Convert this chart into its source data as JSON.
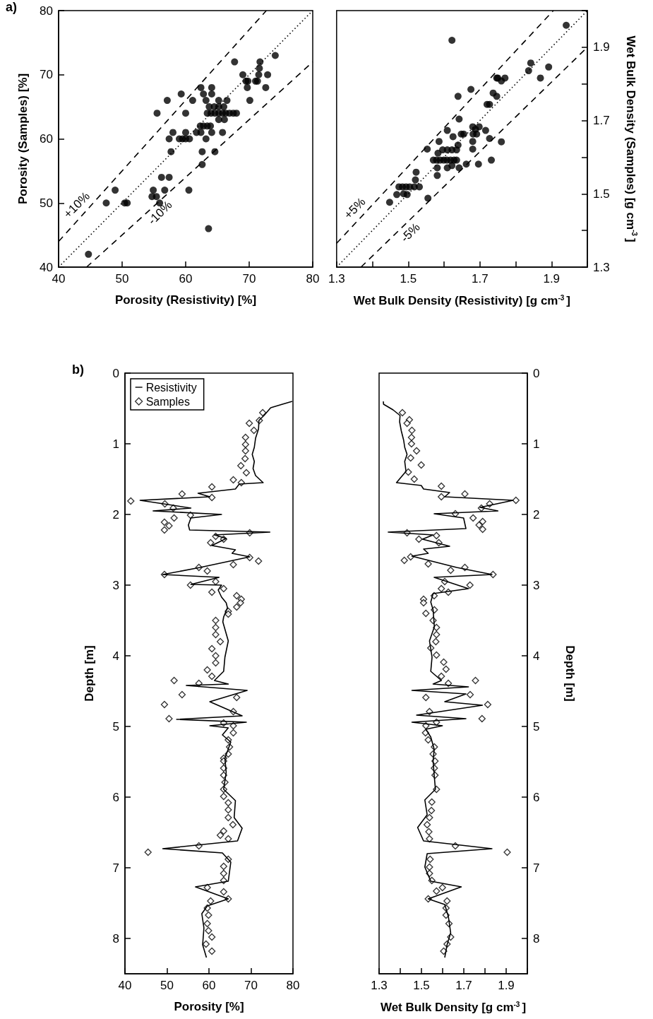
{
  "chart_data": [
    {
      "type": "scatter",
      "xlabel": "Porosity (Resistivity) [%]",
      "ylabel": "Porosity (Samples) [%]",
      "annotations": [
        "a)"
      ],
      "xlim": [
        40,
        80
      ],
      "xticks": [
        40,
        50,
        60,
        70,
        80
      ],
      "ylim": [
        40,
        80
      ],
      "yticks": [
        40,
        50,
        60,
        70,
        80
      ],
      "series": [
        {
          "color": "#000000",
          "marker": "circle",
          "x": [
            44.7,
            47.5,
            48.9,
            50.4,
            50.8,
            54.7,
            54.9,
            55.4,
            55.9,
            56.2,
            56.7,
            57.4,
            57.7,
            57.4,
            58,
            55.5,
            57.1,
            59.3,
            60,
            59,
            59.5,
            60,
            60.6,
            60,
            60.5,
            61.1,
            61.7,
            62.4,
            62.8,
            62.3,
            62.8,
            63.4,
            63.9,
            62.4,
            62.6,
            62.6,
            63.2,
            63.2,
            63.6,
            64.1,
            64.1,
            64.1,
            63.4,
            64,
            64.6,
            65.2,
            65.8,
            66.3,
            66.9,
            67.5,
            68,
            63.7,
            64.5,
            65.2,
            66,
            65.2,
            66.5,
            65.2,
            66.1,
            65.8,
            64.6,
            67.7,
            69,
            69.5,
            69.8,
            69.7,
            70.1,
            71,
            71.3,
            71.5,
            72.9,
            71.6,
            71.7,
            72.6,
            74.1
          ],
          "values": [
            42,
            50,
            52,
            50,
            50,
            51,
            52,
            51,
            50,
            54,
            52,
            54,
            58,
            60,
            61,
            64,
            66,
            67,
            64,
            60,
            60,
            60,
            60,
            61,
            52,
            66,
            61,
            68,
            67,
            62,
            62,
            62,
            62,
            61,
            58,
            56,
            66,
            60,
            46,
            68,
            67,
            61,
            64,
            64,
            64,
            64,
            64,
            64,
            64,
            64,
            64,
            65,
            65,
            65,
            65,
            66,
            66,
            63,
            63,
            61,
            58,
            72,
            70,
            69,
            69,
            68,
            66,
            69,
            69,
            70,
            70,
            71,
            72,
            68,
            73
          ]
        },
        {
          "type": "line",
          "color": "#000000",
          "line_style": "dotted",
          "marker": "none",
          "x": [
            40,
            80
          ],
          "values": [
            40,
            80
          ]
        },
        {
          "type": "line",
          "name": "+10%",
          "color": "#000000",
          "line_style": "dashed",
          "marker": "none",
          "x": [
            40,
            46,
            72.7
          ],
          "values": [
            44,
            50.6,
            80
          ]
        },
        {
          "type": "line",
          "name": "-10%",
          "color": "#000000",
          "line_style": "dashed",
          "marker": "none",
          "x": [
            44.4,
            53,
            80
          ],
          "values": [
            40,
            47.7,
            72
          ]
        }
      ]
    },
    {
      "type": "scatter",
      "xlabel": "Wet Bulk Density (Resistivity) [g cm$^{-3}$]",
      "y2label": "Wet Bulk Density (Samples) [g cm$^{-3}$]",
      "xlim": [
        1.3,
        2.0
      ],
      "xticks": [
        1.3,
        {
          "value": 1.4,
          "label": null
        },
        1.5,
        {
          "value": 1.6,
          "label": null
        },
        1.7,
        {
          "value": 1.8,
          "label": null
        },
        1.9,
        {
          "value": 2.0,
          "label": null
        }
      ],
      "y2lim": [
        1.3,
        2.0
      ],
      "y2ticks": [
        1.3,
        {
          "value": 1.4,
          "label": null
        },
        1.5,
        {
          "value": 1.6,
          "label": null
        },
        1.7,
        {
          "value": 1.8,
          "label": null
        },
        1.9,
        {
          "value": 2.0,
          "label": null
        }
      ],
      "series": [
        {
          "axis": "y2",
          "color": "#000000",
          "marker": "circle",
          "x": [
            1.448,
            1.468,
            1.474,
            1.484,
            1.494,
            1.504,
            1.487,
            1.497,
            1.517,
            1.522,
            1.52,
            1.531,
            1.555,
            1.553,
            1.57,
            1.579,
            1.589,
            1.599,
            1.608,
            1.618,
            1.628,
            1.635,
            1.583,
            1.596,
            1.609,
            1.622,
            1.635,
            1.586,
            1.609,
            1.625,
            1.639,
            1.648,
            1.655,
            1.581,
            1.581,
            1.609,
            1.622,
            1.642,
            1.662,
            1.68,
            1.688,
            1.698,
            1.681,
            1.691,
            1.68,
            1.68,
            1.696,
            1.716,
            1.727,
            1.732,
            1.76,
            1.642,
            1.639,
            1.675,
            1.622,
            1.72,
            1.727,
            1.737,
            1.747,
            1.747,
            1.75,
            1.76,
            1.77,
            1.836,
            1.842,
            1.869,
            1.892,
            1.941
          ],
          "values": [
            1.477,
            1.498,
            1.519,
            1.519,
            1.519,
            1.519,
            1.5,
            1.498,
            1.519,
            1.559,
            1.538,
            1.519,
            1.488,
            1.622,
            1.592,
            1.592,
            1.592,
            1.592,
            1.592,
            1.592,
            1.592,
            1.592,
            1.611,
            1.62,
            1.62,
            1.62,
            1.62,
            1.643,
            1.673,
            1.656,
            1.633,
            1.663,
            1.663,
            1.571,
            1.55,
            1.571,
            1.577,
            1.571,
            1.581,
            1.683,
            1.676,
            1.683,
            1.663,
            1.663,
            1.643,
            1.622,
            1.581,
            1.673,
            1.651,
            1.592,
            1.642,
            1.704,
            1.766,
            1.785,
            1.919,
            1.744,
            1.744,
            1.775,
            1.766,
            1.816,
            1.816,
            1.808,
            1.816,
            1.836,
            1.857,
            1.816,
            1.846,
            1.96
          ]
        },
        {
          "type": "line",
          "axis": "y2",
          "color": "#000000",
          "line_style": "dotted",
          "marker": "none",
          "x": [
            1.3,
            2.0
          ],
          "values": [
            1.3,
            2.0
          ]
        },
        {
          "type": "line",
          "axis": "y2",
          "name": "+5%",
          "color": "#000000",
          "line_style": "dashed",
          "marker": "none",
          "x": [
            1.3,
            1.4,
            1.905
          ],
          "values": [
            1.365,
            1.47,
            2.0
          ]
        },
        {
          "type": "line",
          "axis": "y2",
          "name": "-5%",
          "color": "#000000",
          "line_style": "dashed",
          "marker": "none",
          "x": [
            1.368,
            1.46,
            2.0
          ],
          "values": [
            1.3,
            1.387,
            1.9
          ]
        }
      ]
    },
    {
      "type": "line",
      "xlabel": "Porosity [%]",
      "ylabel": "Depth [m]",
      "annotations": [
        "b)"
      ],
      "legend": "top left",
      "xlim": [
        40,
        80
      ],
      "xticks": [
        40,
        50,
        60,
        70,
        80
      ],
      "ylim": [
        8.5,
        0
      ],
      "yticks": [
        0,
        1,
        2,
        3,
        4,
        5,
        6,
        7,
        8
      ],
      "series": [
        {
          "name": "Resistivity",
          "color": "#000000",
          "marker": "none",
          "line_style": "solid",
          "x": [
            79.8,
            77.5,
            74.7,
            73.1,
            71.9,
            71.8,
            71.1,
            70.8,
            70.3,
            70.8,
            70.5,
            71.1,
            72.9,
            67.2,
            66.3,
            57.4,
            60.2,
            43.6,
            49.2,
            55.7,
            46.7,
            63,
            55.7,
            55.1,
            55.4,
            74.5,
            61.3,
            64.1,
            60.7,
            66.3,
            65.5,
            69.7,
            57.9,
            49,
            62.4,
            55.7,
            63,
            62.2,
            63,
            64.1,
            64.4,
            63.5,
            63.3,
            64.6,
            63.8,
            63.5,
            61.3,
            64.6,
            54.6,
            69.1,
            60.2,
            67.9,
            52.3,
            68.9,
            60.2,
            64.6,
            63.2,
            65.2,
            63.8,
            64.1,
            63.5,
            66.3,
            66,
            67.9,
            66.8,
            49,
            63.2,
            65.2,
            64.6,
            56.8,
            64.6,
            59.6,
            58.3,
            58.8,
            58.5,
            59.4
          ],
          "values": [
            0.4,
            0.44,
            0.49,
            0.6,
            0.67,
            0.79,
            0.92,
            1.05,
            1.15,
            1.25,
            1.35,
            1.45,
            1.55,
            1.57,
            1.64,
            1.7,
            1.75,
            1.8,
            1.85,
            1.91,
            1.95,
            2,
            2.05,
            2.15,
            2.22,
            2.25,
            2.29,
            2.34,
            2.44,
            2.5,
            2.55,
            2.6,
            2.75,
            2.85,
            2.89,
            2.99,
            3,
            3.07,
            3.17,
            3.25,
            3.32,
            3.45,
            3.52,
            3.79,
            4.02,
            4.22,
            4.35,
            4.4,
            4.42,
            4.49,
            4.65,
            4.85,
            4.9,
            4.94,
            4.99,
            5.02,
            5.12,
            5.22,
            5.45,
            5.65,
            5.89,
            6.05,
            6.29,
            6.44,
            6.62,
            6.73,
            6.79,
            6.92,
            7.19,
            7.27,
            7.44,
            7.54,
            7.65,
            7.85,
            8.09,
            8.27
          ]
        },
        {
          "type": "scatter",
          "name": "Samples",
          "color": "#000000",
          "marker": "diamond",
          "x": [
            72.8,
            72,
            69.6,
            70.7,
            68.7,
            68.7,
            68.7,
            68.6,
            67.6,
            68.9,
            65.8,
            67.7,
            60.7,
            53.6,
            60.7,
            41.4,
            49.5,
            51.5,
            51.7,
            55.6,
            49.4,
            50.5,
            49.4,
            69.7,
            61.6,
            60.4,
            63.5,
            69.7,
            71.8,
            65.8,
            57.6,
            59.6,
            49.4,
            61.6,
            55.6,
            63.5,
            60.7,
            66.6,
            67.7,
            67.5,
            66.6,
            64.6,
            64.6,
            61.6,
            61.6,
            61.6,
            62.7,
            60.7,
            61.6,
            61.6,
            59.6,
            60.7,
            51.7,
            57.6,
            53.6,
            66.6,
            49.4,
            65.8,
            50.5,
            63.5,
            65.8,
            65.8,
            64.6,
            64.9,
            64.6,
            63.5,
            63.5,
            63.5,
            63.5,
            63.8,
            63.5,
            63.5,
            64.6,
            64.6,
            64.6,
            65.7,
            63.5,
            62.7,
            64.6,
            57.6,
            45.5,
            64.6,
            63.5,
            63.5,
            63.5,
            59.6,
            63.5,
            64.6,
            60.4,
            59.6,
            59.9,
            59.6,
            59.9,
            60.7,
            59.3,
            60.7
          ],
          "values": [
            0.56,
            0.67,
            0.71,
            0.81,
            0.91,
            1.01,
            1.1,
            1.21,
            1.31,
            1.41,
            1.51,
            1.55,
            1.61,
            1.71,
            1.76,
            1.81,
            1.85,
            1.91,
            2.05,
            2.01,
            2.11,
            2.16,
            2.22,
            2.26,
            2.31,
            2.4,
            2.35,
            2.61,
            2.66,
            2.71,
            2.75,
            2.8,
            2.85,
            2.95,
            3,
            3.05,
            3.1,
            3.15,
            3.2,
            3.25,
            3.31,
            3.37,
            3.41,
            3.5,
            3.6,
            3.7,
            3.8,
            3.9,
            4,
            4.1,
            4.2,
            4.29,
            4.35,
            4.39,
            4.55,
            4.59,
            4.69,
            4.79,
            4.89,
            4.95,
            4.99,
            5.09,
            5.19,
            5.29,
            5.39,
            5.45,
            5.49,
            5.59,
            5.69,
            5.79,
            5.89,
            5.99,
            6.08,
            6.18,
            6.29,
            6.39,
            6.48,
            6.54,
            6.59,
            6.69,
            6.78,
            6.88,
            6.98,
            7.08,
            7.18,
            7.28,
            7.34,
            7.44,
            7.47,
            7.57,
            7.67,
            7.79,
            7.89,
            7.98,
            8.08,
            8.18
          ]
        }
      ]
    },
    {
      "type": "line",
      "xlabel": "Wet Bulk Density [g cm$^{-3}$]",
      "y2label": "Depth [m]",
      "xlim": [
        1.3,
        2.0
      ],
      "xticks": [
        1.3,
        {
          "value": 1.4,
          "label": null
        },
        1.5,
        {
          "value": 1.6,
          "label": null
        },
        1.7,
        {
          "value": 1.8,
          "label": null
        },
        1.9,
        {
          "value": 2.0,
          "label": null
        }
      ],
      "y2lim": [
        8.5,
        0
      ],
      "y2ticks": [
        0,
        1,
        2,
        3,
        4,
        5,
        6,
        7,
        8
      ],
      "series": [
        {
          "axis": "y2",
          "color": "#000000",
          "marker": "none",
          "line_style": "solid",
          "x": [
            1.32,
            1.321,
            1.366,
            1.399,
            1.397,
            1.405,
            1.416,
            1.421,
            1.432,
            1.421,
            1.427,
            1.382,
            1.499,
            1.51,
            1.633,
            1.61,
            1.933,
            1.777,
            1.861,
            1.56,
            1.699,
            1.71,
            1.343,
            1.555,
            1.505,
            1.633,
            1.51,
            1.532,
            1.455,
            1.666,
            1.833,
            1.56,
            1.722,
            1.555,
            1.544,
            1.555,
            1.561,
            1.538,
            1.55,
            1.544,
            1.594,
            1.555,
            1.722,
            1.455,
            1.71,
            1.61,
            1.788,
            1.477,
            1.71,
            1.455,
            1.599,
            1.521,
            1.544,
            1.56,
            1.555,
            1.561,
            1.566,
            1.516,
            1.527,
            1.482,
            1.51,
            1.833,
            1.527,
            1.516,
            1.544,
            1.688,
            1.532,
            1.61,
            1.627,
            1.638,
            1.621,
            1.61
          ],
          "values": [
            0.4,
            0.44,
            0.52,
            0.6,
            0.69,
            0.82,
            0.95,
            1.05,
            1.15,
            1.25,
            1.39,
            1.55,
            1.59,
            1.64,
            1.69,
            1.75,
            1.8,
            1.9,
            1.95,
            1.99,
            2.05,
            2.2,
            2.25,
            2.29,
            2.35,
            2.45,
            2.49,
            2.55,
            2.59,
            2.75,
            2.85,
            2.89,
            3.05,
            3.12,
            3.24,
            3.35,
            3.59,
            3.79,
            4.02,
            4.22,
            4.35,
            4.4,
            4.44,
            4.49,
            4.54,
            4.65,
            4.7,
            4.84,
            4.89,
            4.94,
            4.99,
            5.04,
            5.15,
            5.32,
            5.49,
            5.72,
            5.89,
            6.04,
            6.25,
            6.43,
            6.62,
            6.73,
            6.8,
            6.99,
            7.19,
            7.27,
            7.44,
            7.52,
            7.69,
            7.92,
            8.09,
            8.27
          ]
        },
        {
          "type": "scatter",
          "axis": "y2",
          "color": "#000000",
          "marker": "diamond",
          "x": [
            1.41,
            1.443,
            1.432,
            1.455,
            1.453,
            1.453,
            1.477,
            1.449,
            1.499,
            1.438,
            1.466,
            1.594,
            1.705,
            1.594,
            1.946,
            1.822,
            1.783,
            1.66,
            1.744,
            1.789,
            1.772,
            1.789,
            1.432,
            1.571,
            1.488,
            1.582,
            1.449,
            1.419,
            1.532,
            1.705,
            1.638,
            1.838,
            1.61,
            1.729,
            1.594,
            1.627,
            1.56,
            1.51,
            1.51,
            1.561,
            1.521,
            1.555,
            1.571,
            1.571,
            1.568,
            1.544,
            1.571,
            1.605,
            1.616,
            1.594,
            1.755,
            1.627,
            1.73,
            1.521,
            1.813,
            1.538,
            1.786,
            1.571,
            1.521,
            1.519,
            1.532,
            1.561,
            1.555,
            1.564,
            1.561,
            1.564,
            1.571,
            1.549,
            1.547,
            1.538,
            1.527,
            1.535,
            1.538,
            1.66,
            1.905,
            1.541,
            1.538,
            1.538,
            1.549,
            1.599,
            1.571,
            1.532,
            1.621,
            1.616,
            1.616,
            1.63,
            1.638,
            1.621,
            1.605
          ],
          "values": [
            0.56,
            0.66,
            0.71,
            0.81,
            0.91,
            1,
            1.1,
            1.2,
            1.3,
            1.4,
            1.5,
            1.6,
            1.71,
            1.75,
            1.8,
            1.85,
            1.91,
            1.99,
            2.05,
            2.1,
            2.15,
            2.21,
            2.26,
            2.3,
            2.35,
            2.4,
            2.6,
            2.65,
            2.7,
            2.75,
            2.79,
            2.85,
            2.95,
            3,
            3.05,
            3.1,
            3.15,
            3.2,
            3.25,
            3.35,
            3.4,
            3.5,
            3.6,
            3.7,
            3.8,
            3.89,
            3.99,
            4.09,
            4.19,
            4.29,
            4.35,
            4.39,
            4.55,
            4.59,
            4.69,
            4.79,
            4.89,
            4.94,
            4.99,
            5.09,
            5.19,
            5.29,
            5.39,
            5.49,
            5.59,
            5.69,
            5.89,
            6.07,
            6.19,
            6.29,
            6.39,
            6.49,
            6.59,
            6.69,
            6.78,
            6.88,
            6.99,
            7.08,
            7.18,
            7.28,
            7.33,
            7.44,
            7.47,
            7.57,
            7.67,
            7.79,
            7.98,
            8.08,
            8.18
          ]
        }
      ]
    }
  ]
}
